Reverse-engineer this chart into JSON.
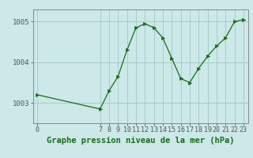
{
  "title": "Graphe pression niveau de la mer (hPa)",
  "background_color": "#cce8e8",
  "plot_bg_color": "#cce8e8",
  "line_color": "#1a6b1a",
  "marker_color": "#1a6b1a",
  "grid_color": "#a8cccc",
  "x_data": [
    0,
    7,
    8,
    9,
    10,
    11,
    12,
    13,
    14,
    15,
    16,
    17,
    18,
    19,
    20,
    21,
    22,
    23
  ],
  "y_data": [
    1003.2,
    1002.85,
    1003.3,
    1003.65,
    1004.3,
    1004.85,
    1004.95,
    1004.85,
    1004.6,
    1004.1,
    1003.6,
    1003.5,
    1003.85,
    1004.15,
    1004.4,
    1004.6,
    1005.0,
    1005.05
  ],
  "ylim": [
    1002.5,
    1005.3
  ],
  "xlim": [
    -0.5,
    23.5
  ],
  "yticks": [
    1003,
    1004,
    1005
  ],
  "xticks": [
    0,
    7,
    8,
    9,
    10,
    11,
    12,
    13,
    14,
    15,
    16,
    17,
    18,
    19,
    20,
    21,
    22,
    23
  ],
  "title_fontsize": 7.5,
  "tick_fontsize": 6.0,
  "ylabel_fontsize": 6.5
}
